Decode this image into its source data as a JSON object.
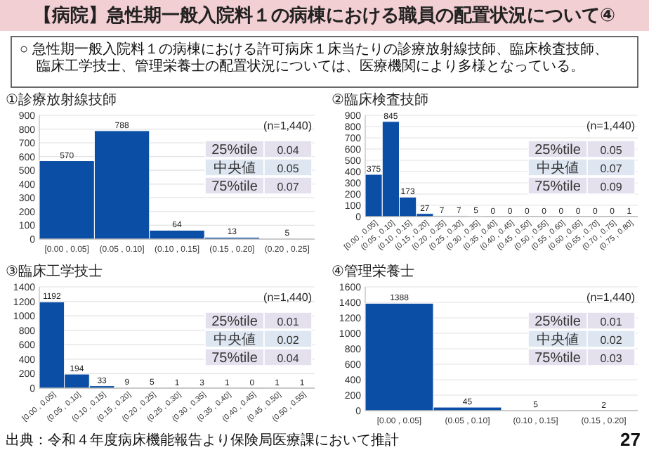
{
  "chart_data": [
    {
      "type": "other",
      "title": "【病院】急性期一般入院料１の病棟における職員の配置状況について④",
      "subtitle": "○ 急性期一般入院料１の病棟における許可病床１床当たりの診療放射線技師、臨床検査技師、臨床工学技士、管理栄養士の配置状況については、医療機関により多様となっている。",
      "annotations": [
        "出典：令和４年度病床機能報告より保険局医療課において推計",
        "27"
      ]
    },
    {
      "type": "bar",
      "title": "①診療放射線技師",
      "categories": [
        "[0.00 , 0.05]",
        "(0.05 , 0.10]",
        "(0.10 , 0.15]",
        "(0.15 , 0.20]",
        "(0.20 , 0.25]"
      ],
      "values": [
        570,
        788,
        64,
        13,
        5
      ],
      "color": "#0b4ea6",
      "ylim": [
        0,
        900
      ],
      "yticks": [
        0,
        100,
        200,
        300,
        400,
        500,
        600,
        700,
        800,
        900
      ],
      "grid": "y",
      "data_labels": true,
      "annotations": [
        "(n=1,440)",
        "25%tile",
        "0.04",
        "中央値",
        "0.05",
        "75%tile",
        "0.07"
      ]
    },
    {
      "type": "bar",
      "title": "②臨床検査技師",
      "categories": [
        "[0.00 , 0.05]",
        "(0.05 , 0.10]",
        "(0.10 , 0.15]",
        "(0.15 , 0.20]",
        "(0.20 , 0.25]",
        "(0.25 , 0.30]",
        "(0.30 , 0.35]",
        "(0.35 , 0.40]",
        "(0.40 , 0.45]",
        "(0.45 , 0.50]",
        "(0.50 , 0.55]",
        "(0.55 , 0.60]",
        "(0.60 , 0.65]",
        "(0.65 , 0.70]",
        "(0.70 , 0.75]",
        "(0.75 , 0.80]"
      ],
      "values": [
        375,
        845,
        173,
        27,
        7,
        7,
        5,
        0,
        0,
        0,
        0,
        0,
        0,
        0,
        0,
        1
      ],
      "color": "#0b4ea6",
      "ylim": [
        0,
        900
      ],
      "yticks": [
        0,
        100,
        200,
        300,
        400,
        500,
        600,
        700,
        800,
        900
      ],
      "grid": "y",
      "data_labels": true,
      "annotations": [
        "(n=1,440)",
        "25%tile",
        "0.05",
        "中央値",
        "0.07",
        "75%tile",
        "0.09"
      ]
    },
    {
      "type": "bar",
      "title": "③臨床工学技士",
      "categories": [
        "[0.00 , 0.05]",
        "(0.05 , 0.10]",
        "(0.10 , 0.15]",
        "(0.15 , 0.20]",
        "(0.20 , 0.25]",
        "(0.25 , 0.30]",
        "(0.30 , 0.35]",
        "(0.35 , 0.40]",
        "(0.40 , 0.45]",
        "(0.45 , 0.50]",
        "(0.50 , 0.55]"
      ],
      "values": [
        1192,
        194,
        33,
        9,
        5,
        1,
        3,
        1,
        0,
        1,
        1
      ],
      "color": "#0b4ea6",
      "ylim": [
        0,
        1400
      ],
      "yticks": [
        0,
        200,
        400,
        600,
        800,
        1000,
        1200,
        1400
      ],
      "grid": "y",
      "data_labels": true,
      "annotations": [
        "(n=1,440)",
        "25%tile",
        "0.01",
        "中央値",
        "0.02",
        "75%tile",
        "0.04"
      ]
    },
    {
      "type": "bar",
      "title": "④管理栄養士",
      "categories": [
        "[0.00 , 0.05]",
        "(0.05 , 0.10]",
        "(0.10 , 0.15]",
        "(0.15 , 0.20]"
      ],
      "values": [
        1388,
        45,
        5,
        2
      ],
      "color": "#0b4ea6",
      "ylim": [
        0,
        1600
      ],
      "yticks": [
        0,
        200,
        400,
        600,
        800,
        1000,
        1200,
        1400,
        1600
      ],
      "grid": "y",
      "data_labels": true,
      "annotations": [
        "(n=1,440)",
        "25%tile",
        "0.01",
        "中央値",
        "0.02",
        "75%tile",
        "0.03"
      ]
    }
  ]
}
